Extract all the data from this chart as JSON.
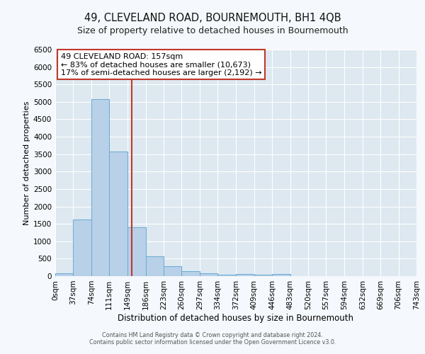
{
  "title": "49, CLEVELAND ROAD, BOURNEMOUTH, BH1 4QB",
  "subtitle": "Size of property relative to detached houses in Bournemouth",
  "xlabel": "Distribution of detached houses by size in Bournemouth",
  "ylabel": "Number of detached properties",
  "bin_edges": [
    0,
    37,
    74,
    111,
    149,
    186,
    223,
    260,
    297,
    334,
    372,
    409,
    446,
    483,
    520,
    557,
    594,
    632,
    669,
    706,
    743
  ],
  "bar_heights": [
    75,
    1630,
    5080,
    3580,
    1400,
    575,
    280,
    145,
    75,
    45,
    55,
    45,
    55,
    0,
    0,
    0,
    0,
    0,
    0,
    0
  ],
  "bar_color": "#b8d0e8",
  "bar_edge_color": "#6aaad4",
  "property_size": 157,
  "vline_color": "#c0392b",
  "annotation_line1": "49 CLEVELAND ROAD: 157sqm",
  "annotation_line2": "← 83% of detached houses are smaller (10,673)",
  "annotation_line3": "17% of semi-detached houses are larger (2,192) →",
  "annotation_box_color": "#c0392b",
  "ylim": [
    0,
    6500
  ],
  "yticks": [
    0,
    500,
    1000,
    1500,
    2000,
    2500,
    3000,
    3500,
    4000,
    4500,
    5000,
    5500,
    6000,
    6500
  ],
  "fig_bg_color": "#f5f8fc",
  "plot_bg_color": "#dde8f0",
  "grid_color": "#ffffff",
  "footnote1": "Contains HM Land Registry data © Crown copyright and database right 2024.",
  "footnote2": "Contains public sector information licensed under the Open Government Licence v3.0.",
  "title_fontsize": 10.5,
  "subtitle_fontsize": 9,
  "xlabel_fontsize": 8.5,
  "ylabel_fontsize": 8,
  "tick_fontsize": 7.5,
  "annot_fontsize": 8
}
